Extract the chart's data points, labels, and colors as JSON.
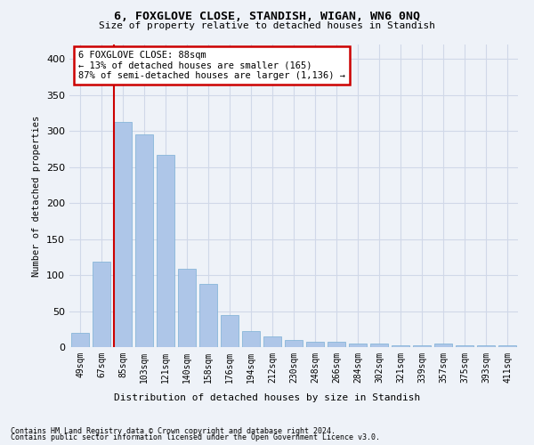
{
  "title1": "6, FOXGLOVE CLOSE, STANDISH, WIGAN, WN6 0NQ",
  "title2": "Size of property relative to detached houses in Standish",
  "xlabel": "Distribution of detached houses by size in Standish",
  "ylabel": "Number of detached properties",
  "categories": [
    "49sqm",
    "67sqm",
    "85sqm",
    "103sqm",
    "121sqm",
    "140sqm",
    "158sqm",
    "176sqm",
    "194sqm",
    "212sqm",
    "230sqm",
    "248sqm",
    "266sqm",
    "284sqm",
    "302sqm",
    "321sqm",
    "339sqm",
    "357sqm",
    "375sqm",
    "393sqm",
    "411sqm"
  ],
  "values": [
    20,
    119,
    312,
    295,
    267,
    109,
    88,
    45,
    22,
    15,
    10,
    7,
    7,
    5,
    5,
    3,
    3,
    5,
    3,
    3,
    3
  ],
  "bar_color": "#aec6e8",
  "bar_edge_color": "#7bafd4",
  "highlight_color": "#cc0000",
  "vline_index": 2,
  "annotation_text": "6 FOXGLOVE CLOSE: 88sqm\n← 13% of detached houses are smaller (165)\n87% of semi-detached houses are larger (1,136) →",
  "annotation_box_color": "#ffffff",
  "annotation_box_edge_color": "#cc0000",
  "ylim": [
    0,
    420
  ],
  "yticks": [
    0,
    50,
    100,
    150,
    200,
    250,
    300,
    350,
    400
  ],
  "grid_color": "#d0d8e8",
  "background_color": "#eef2f8",
  "footnote1": "Contains HM Land Registry data © Crown copyright and database right 2024.",
  "footnote2": "Contains public sector information licensed under the Open Government Licence v3.0."
}
